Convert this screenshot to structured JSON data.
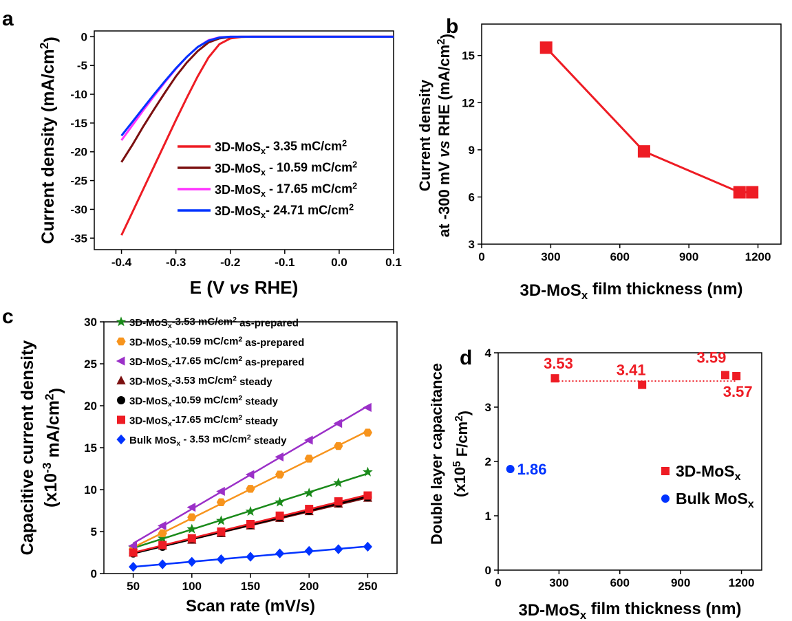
{
  "figure": {
    "chart_data": [
      {
        "panel": "a",
        "type": "line",
        "xlabel": "E (V vs RHE)",
        "ylabel": "Current density (mA/cm2)",
        "xlim": [
          -0.45,
          0.1
        ],
        "ylim": [
          -37,
          1
        ],
        "xticks": [
          "-0.4",
          "-0.3",
          "-0.2",
          "-0.1",
          "0.0",
          "0.1"
        ],
        "xtick_values": [
          -0.4,
          -0.3,
          -0.2,
          -0.1,
          0.0,
          0.1
        ],
        "yticks": [
          "0",
          "-5",
          "-10",
          "-15",
          "-20",
          "-25",
          "-30",
          "-35"
        ],
        "ytick_values": [
          0,
          -5,
          -10,
          -15,
          -20,
          -25,
          -30,
          -35
        ],
        "legend_position": "center-right",
        "series": [
          {
            "name": "3D-MoSx- 3.35 mC/cm2",
            "color": "#ee1c24",
            "x": [
              -0.4,
              -0.38,
              -0.36,
              -0.34,
              -0.32,
              -0.3,
              -0.28,
              -0.26,
              -0.24,
              -0.22,
              -0.2,
              -0.18,
              -0.16,
              -0.14,
              0.1
            ],
            "y": [
              -34.5,
              -30.5,
              -26.5,
              -22.5,
              -18.5,
              -14.5,
              -10.6,
              -6.9,
              -3.6,
              -1.3,
              -0.3,
              -0.05,
              0,
              0,
              0
            ]
          },
          {
            "name": "3D-MoSx - 10.59 mC/cm2",
            "color": "#7b1010",
            "x": [
              -0.4,
              -0.38,
              -0.36,
              -0.34,
              -0.32,
              -0.3,
              -0.28,
              -0.26,
              -0.24,
              -0.22,
              -0.2,
              -0.18,
              -0.16,
              0.1
            ],
            "y": [
              -21.8,
              -18.8,
              -15.6,
              -12.6,
              -9.7,
              -6.9,
              -4.5,
              -2.5,
              -1.0,
              -0.3,
              -0.05,
              0,
              0,
              0
            ]
          },
          {
            "name": "3D-MoSx - 17.65 mC/cm2",
            "color": "#ff33ff",
            "x": [
              -0.4,
              -0.38,
              -0.36,
              -0.34,
              -0.32,
              -0.3,
              -0.28,
              -0.26,
              -0.24,
              -0.22,
              -0.2,
              -0.18,
              0.1
            ],
            "y": [
              -18.0,
              -15.4,
              -12.8,
              -10.3,
              -7.9,
              -5.6,
              -3.5,
              -1.8,
              -0.6,
              -0.1,
              0,
              0,
              0
            ]
          },
          {
            "name": "3D-MoSx- 24.71 mC/cm2",
            "color": "#0033ff",
            "x": [
              -0.4,
              -0.38,
              -0.36,
              -0.34,
              -0.32,
              -0.3,
              -0.28,
              -0.26,
              -0.24,
              -0.22,
              -0.2,
              -0.18,
              0.1
            ],
            "y": [
              -17.2,
              -14.8,
              -12.4,
              -10.0,
              -7.7,
              -5.5,
              -3.5,
              -1.8,
              -0.7,
              -0.15,
              0,
              0,
              0
            ]
          }
        ]
      },
      {
        "panel": "b",
        "type": "line",
        "xlabel": "3D-MoSx film thickness (nm)",
        "ylabel": "Current density at -300 mV vs RHE (mA/cm2)",
        "xlim": [
          0,
          1300
        ],
        "ylim": [
          3,
          17
        ],
        "xticks": [
          "0",
          "300",
          "600",
          "900",
          "1200"
        ],
        "xtick_values": [
          0,
          300,
          600,
          900,
          1200
        ],
        "yticks": [
          "3",
          "6",
          "9",
          "12",
          "15"
        ],
        "ytick_values": [
          3,
          6,
          9,
          12,
          15
        ],
        "series": [
          {
            "name": "",
            "color": "#ee1c24",
            "marker": "square",
            "x": [
              280,
              705,
              1120,
              1175
            ],
            "y": [
              15.5,
              8.9,
              6.3,
              6.3
            ]
          }
        ]
      },
      {
        "panel": "c",
        "type": "scatter",
        "xlabel": "Scan rate (mV/s)",
        "ylabel": "Capacitive current density (x10-3 mA/cm2)",
        "xlim": [
          25,
          275
        ],
        "ylim": [
          0,
          30
        ],
        "xticks": [
          "50",
          "100",
          "150",
          "200",
          "250"
        ],
        "xtick_values": [
          50,
          100,
          150,
          200,
          250
        ],
        "yticks": [
          "0",
          "5",
          "10",
          "15",
          "20",
          "25",
          "30"
        ],
        "ytick_values": [
          0,
          5,
          10,
          15,
          20,
          25,
          30
        ],
        "legend_position": "top-left",
        "x": [
          50,
          75,
          100,
          125,
          150,
          175,
          200,
          225,
          250
        ],
        "series": [
          {
            "name": "3D-MoSx-3.53 mC/cm2 as-prepared",
            "color": "#1a8a1a",
            "marker": "star",
            "values": [
              3.1,
              4.2,
              5.3,
              6.3,
              7.4,
              8.5,
              9.6,
              10.8,
              12.1
            ]
          },
          {
            "name": "3D-MoSx-10.59 mC/cm2 as-prepared",
            "color": "#f7941d",
            "marker": "hexagon",
            "values": [
              2.9,
              4.8,
              6.7,
              8.5,
              10.1,
              11.8,
              13.7,
              15.2,
              16.8
            ]
          },
          {
            "name": "3D-MoSx-17.65 mC/cm2 as-prepared",
            "color": "#9b30c8",
            "marker": "triangle-left",
            "values": [
              3.3,
              5.7,
              7.9,
              9.8,
              11.8,
              13.9,
              15.9,
              17.9,
              19.8
            ]
          },
          {
            "name": "3D-MoSx-3.53 mC/cm2 steady",
            "color": "#7b1010",
            "marker": "triangle-up",
            "values": [
              2.5,
              3.3,
              4.0,
              4.8,
              5.7,
              6.6,
              7.4,
              8.3,
              9.0
            ]
          },
          {
            "name": "3D-MoSx-10.59 mC/cm2 steady",
            "color": "#000000",
            "marker": "circle",
            "values": [
              2.4,
              3.2,
              4.1,
              4.9,
              5.8,
              6.7,
              7.5,
              8.4,
              9.1
            ]
          },
          {
            "name": "3D-MoSx-17.65 mC/cm2 steady",
            "color": "#ee1c24",
            "marker": "square",
            "values": [
              2.5,
              3.4,
              4.2,
              5.0,
              5.9,
              6.9,
              7.7,
              8.6,
              9.3
            ]
          },
          {
            "name": "Bulk MoSx - 3.53 mC/cm2 steady",
            "color": "#0033ff",
            "marker": "diamond",
            "values": [
              0.8,
              1.1,
              1.4,
              1.7,
              2.0,
              2.4,
              2.7,
              2.9,
              3.2
            ]
          }
        ]
      },
      {
        "panel": "d",
        "type": "scatter",
        "xlabel": "3D-MoSx film thickness (nm)",
        "ylabel": "Double layer capacitance (x105 F/cm2)",
        "xlim": [
          0,
          1300
        ],
        "ylim": [
          0,
          4
        ],
        "xticks": [
          "0",
          "300",
          "600",
          "900",
          "1200"
        ],
        "xtick_values": [
          0,
          300,
          600,
          900,
          1200
        ],
        "yticks": [
          "0",
          "1",
          "2",
          "3",
          "4"
        ],
        "ytick_values": [
          0,
          1,
          2,
          3,
          4
        ],
        "legend_position": "center-right",
        "reference_line": {
          "y": 3.48,
          "x_range": [
            280,
            1175
          ],
          "style": "dotted",
          "color": "#ee1c24"
        },
        "series": [
          {
            "name": "3D-MoSx",
            "color": "#ee1c24",
            "marker": "square",
            "x": [
              280,
              710,
              1120,
              1175
            ],
            "y": [
              3.53,
              3.41,
              3.59,
              3.57
            ],
            "labels": [
              "3.53",
              "3.41",
              "3.59",
              "3.57"
            ]
          },
          {
            "name": "Bulk MoSx",
            "color": "#0033ff",
            "marker": "circle",
            "x": [
              60
            ],
            "y": [
              1.86
            ],
            "labels": [
              "1.86"
            ]
          }
        ]
      }
    ]
  }
}
